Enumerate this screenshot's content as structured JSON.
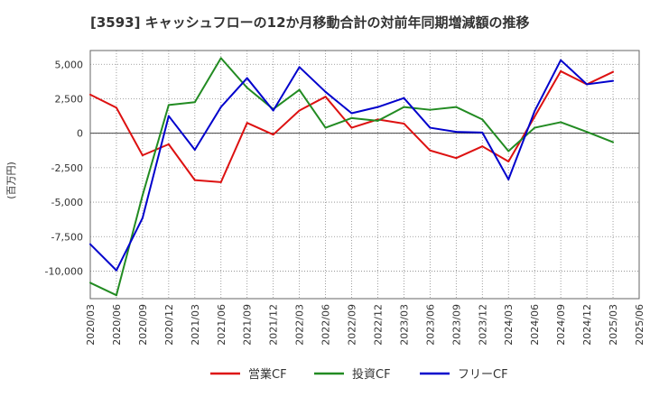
{
  "chart_data": {
    "type": "line",
    "title": "[3593]  キャッシュフローの12か月移動合計の対前年同期増減額の推移",
    "ylabel": "(百万円)",
    "xlabel": "",
    "ylim": [
      -12000,
      6000
    ],
    "yticks": [
      5000,
      2500,
      0,
      -2500,
      -5000,
      -7500,
      -10000
    ],
    "ytick_labels": [
      "5,000",
      "2,500",
      "0",
      "-2,500",
      "-5,000",
      "-7,500",
      "-10,000"
    ],
    "x": [
      "2020/03",
      "2020/06",
      "2020/09",
      "2020/12",
      "2021/03",
      "2021/06",
      "2021/09",
      "2021/12",
      "2022/03",
      "2022/06",
      "2022/09",
      "2022/12",
      "2023/03",
      "2023/06",
      "2023/09",
      "2023/12",
      "2024/03",
      "2024/06",
      "2024/09",
      "2024/12",
      "2025/03",
      "2025/06"
    ],
    "grid": true,
    "legend_position": "bottom",
    "series": [
      {
        "name": "営業CF",
        "color": "#dd1111",
        "values": [
          2800,
          1850,
          -1600,
          -800,
          -3400,
          -3550,
          750,
          -100,
          1650,
          2650,
          400,
          1000,
          700,
          -1250,
          -1800,
          -950,
          -2050,
          1200,
          4500,
          3550,
          4450,
          null
        ]
      },
      {
        "name": "投資CF",
        "color": "#228b22",
        "values": [
          -10850,
          -11750,
          -4500,
          2050,
          2250,
          5450,
          3300,
          1750,
          3150,
          400,
          1100,
          900,
          1900,
          1700,
          1900,
          1000,
          -1300,
          400,
          800,
          100,
          -650,
          null
        ]
      },
      {
        "name": "フリーCF",
        "color": "#0000cc",
        "values": [
          -8050,
          -9950,
          -6150,
          1250,
          -1200,
          1900,
          4000,
          1650,
          4800,
          3000,
          1450,
          1900,
          2550,
          400,
          100,
          50,
          -3350,
          1600,
          5300,
          3550,
          3800,
          null
        ]
      }
    ]
  }
}
